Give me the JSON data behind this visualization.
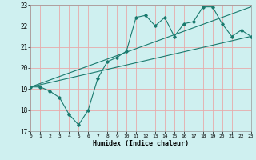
{
  "xlabel": "Humidex (Indice chaleur)",
  "bg_color": "#cff0f0",
  "grid_color": "#e8aaaa",
  "line_color": "#1a7a6e",
  "xmin": 0,
  "xmax": 23,
  "ymin": 17,
  "ymax": 23,
  "yticks": [
    17,
    18,
    19,
    20,
    21,
    22,
    23
  ],
  "xticks": [
    0,
    1,
    2,
    3,
    4,
    5,
    6,
    7,
    8,
    9,
    10,
    11,
    12,
    13,
    14,
    15,
    16,
    17,
    18,
    19,
    20,
    21,
    22,
    23
  ],
  "line1_x": [
    0,
    1,
    2,
    3,
    4,
    5,
    6,
    7,
    8,
    9,
    10,
    11,
    12,
    13,
    14,
    15,
    16,
    17,
    18,
    19,
    20,
    21,
    22,
    23
  ],
  "line1_y": [
    19.1,
    19.1,
    18.9,
    18.6,
    17.8,
    17.3,
    18.0,
    19.5,
    20.3,
    20.5,
    20.8,
    22.4,
    22.5,
    22.0,
    22.4,
    21.5,
    22.1,
    22.2,
    22.9,
    22.9,
    22.1,
    21.5,
    21.8,
    21.5
  ],
  "line2_x": [
    0,
    23
  ],
  "line2_y": [
    19.1,
    22.9
  ],
  "line3_x": [
    0,
    23
  ],
  "line3_y": [
    19.1,
    21.5
  ]
}
